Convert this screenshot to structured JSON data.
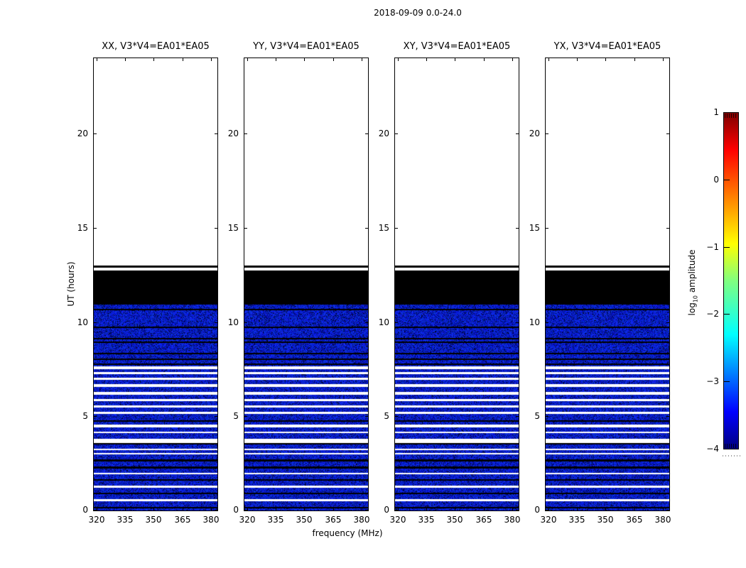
{
  "figure": {
    "background": "#ffffff"
  },
  "chart_data": {
    "type": "heatmap",
    "title": "2018-09-09 0.0-24.0",
    "xlabel": "frequency (MHz)",
    "ylabel": "UT (hours)",
    "panels": [
      {
        "title": "XX, V3*V4=EA01*EA05"
      },
      {
        "title": "YY, V3*V4=EA01*EA05"
      },
      {
        "title": "XY, V3*V4=EA01*EA05"
      },
      {
        "title": "YX, V3*V4=EA01*EA05"
      }
    ],
    "x_ticks": [
      320,
      335,
      350,
      365,
      380
    ],
    "y_ticks": [
      0,
      5,
      10,
      15,
      20
    ],
    "xlim": [
      318.6,
      383.4
    ],
    "ylim": [
      0,
      24
    ],
    "grid": false,
    "colorbar": {
      "label_prefix": "log",
      "label_sub": "10",
      "label_suffix": " amplitude",
      "tick_labels": [
        "1",
        "0",
        "−1",
        "−2",
        "−3",
        "−4"
      ],
      "tick_values": [
        1,
        0,
        -1,
        -2,
        -3,
        -4
      ],
      "lim": [
        -4,
        1
      ],
      "colormap": "jet",
      "gradient_stops": [
        [
          "#00007f",
          0
        ],
        [
          "#0000ff",
          11
        ],
        [
          "#00ffff",
          34
        ],
        [
          "#80ff80",
          50
        ],
        [
          "#ffff00",
          61
        ],
        [
          "#ff0000",
          89
        ],
        [
          "#7f0000",
          100
        ]
      ]
    },
    "palette": {
      "blue_base": "#0020d0",
      "blue_dark": "#000a50",
      "black": "#000000",
      "white": "#ffffff"
    },
    "bands_note": "UT-hour segments (same in all 4 panels, uniform across frequency)",
    "bands": [
      [
        0.0,
        0.11,
        "blue"
      ],
      [
        0.11,
        0.19,
        "black"
      ],
      [
        0.19,
        0.49,
        "blue"
      ],
      [
        0.49,
        0.6,
        "white"
      ],
      [
        0.6,
        0.86,
        "blue"
      ],
      [
        0.86,
        0.94,
        "black"
      ],
      [
        0.94,
        1.2,
        "blue"
      ],
      [
        1.2,
        1.31,
        "white"
      ],
      [
        1.31,
        1.58,
        "blue"
      ],
      [
        1.58,
        1.65,
        "black"
      ],
      [
        1.65,
        1.92,
        "blue"
      ],
      [
        1.92,
        1.99,
        "white"
      ],
      [
        1.99,
        2.22,
        "blue"
      ],
      [
        2.22,
        2.33,
        "black"
      ],
      [
        2.33,
        2.59,
        "blue"
      ],
      [
        2.59,
        2.7,
        "black"
      ],
      [
        2.7,
        2.97,
        "blue"
      ],
      [
        2.97,
        3.04,
        "white"
      ],
      [
        3.04,
        3.19,
        "blue"
      ],
      [
        3.19,
        3.27,
        "white"
      ],
      [
        3.27,
        3.49,
        "blue"
      ],
      [
        3.49,
        3.57,
        "black"
      ],
      [
        3.57,
        3.79,
        "white"
      ],
      [
        3.79,
        4.09,
        "blue"
      ],
      [
        4.09,
        4.17,
        "white"
      ],
      [
        4.17,
        4.4,
        "blue"
      ],
      [
        4.4,
        4.55,
        "white"
      ],
      [
        4.55,
        4.7,
        "blue"
      ],
      [
        4.7,
        4.77,
        "black"
      ],
      [
        4.77,
        5.11,
        "blue"
      ],
      [
        5.11,
        5.22,
        "white"
      ],
      [
        5.22,
        5.45,
        "blue"
      ],
      [
        5.45,
        5.56,
        "white"
      ],
      [
        5.56,
        5.79,
        "blue"
      ],
      [
        5.79,
        5.9,
        "white"
      ],
      [
        5.9,
        6.16,
        "blue"
      ],
      [
        6.16,
        6.31,
        "white"
      ],
      [
        6.31,
        6.57,
        "blue"
      ],
      [
        6.57,
        6.72,
        "white"
      ],
      [
        6.72,
        6.95,
        "blue"
      ],
      [
        6.95,
        7.06,
        "white"
      ],
      [
        7.06,
        7.25,
        "blue"
      ],
      [
        7.25,
        7.36,
        "white"
      ],
      [
        7.36,
        7.51,
        "blue"
      ],
      [
        7.51,
        7.63,
        "white"
      ],
      [
        7.63,
        7.74,
        "blue"
      ],
      [
        7.74,
        7.81,
        "black"
      ],
      [
        7.81,
        8.0,
        "blue"
      ],
      [
        8.0,
        8.08,
        "black"
      ],
      [
        8.08,
        8.3,
        "blue"
      ],
      [
        8.3,
        8.35,
        "black"
      ],
      [
        8.35,
        8.9,
        "blue"
      ],
      [
        8.9,
        8.98,
        "black"
      ],
      [
        8.98,
        9.09,
        "blue"
      ],
      [
        9.09,
        9.17,
        "black"
      ],
      [
        9.17,
        9.69,
        "blue"
      ],
      [
        9.69,
        9.77,
        "black"
      ],
      [
        9.77,
        10.63,
        "blue"
      ],
      [
        10.63,
        10.71,
        "black"
      ],
      [
        10.71,
        10.93,
        "blue"
      ],
      [
        10.93,
        12.73,
        "black"
      ],
      [
        12.73,
        12.88,
        "white"
      ],
      [
        12.88,
        13.0,
        "black"
      ],
      [
        13.0,
        24.0,
        "white"
      ]
    ]
  }
}
